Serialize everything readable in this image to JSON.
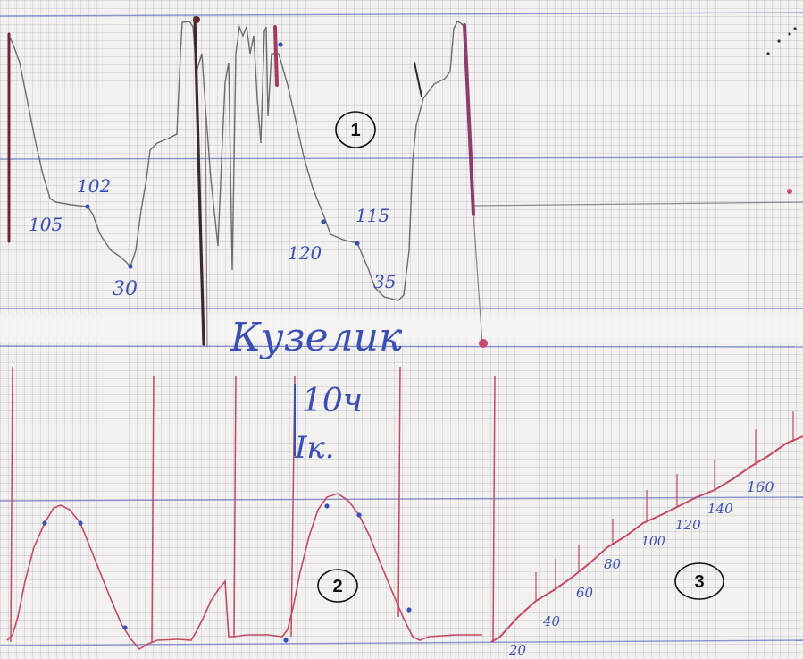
{
  "colors": {
    "paper": "#f2f1ef",
    "grid_major": "#6a72c4",
    "trace_grey": "#6d6b72",
    "trace_red": "#c24a62",
    "ink_blue": "#3b4fb3",
    "marker_pink": "#c9486f"
  },
  "panel_markers": {
    "one": "1",
    "two": "2",
    "three": "3"
  },
  "upper_trace_annotations": {
    "a": "105",
    "b": "102",
    "c": "30",
    "d": "120",
    "e": "115",
    "f": "35"
  },
  "handwritten_note": {
    "line1": "Кузелик",
    "line2": "10ч",
    "line3": "Ік."
  },
  "ramp_annotations": {
    "v20": "20",
    "v40": "40",
    "v60": "60",
    "v80": "80",
    "v100": "100",
    "v120": "120",
    "v140": "140",
    "v160": "160"
  }
}
